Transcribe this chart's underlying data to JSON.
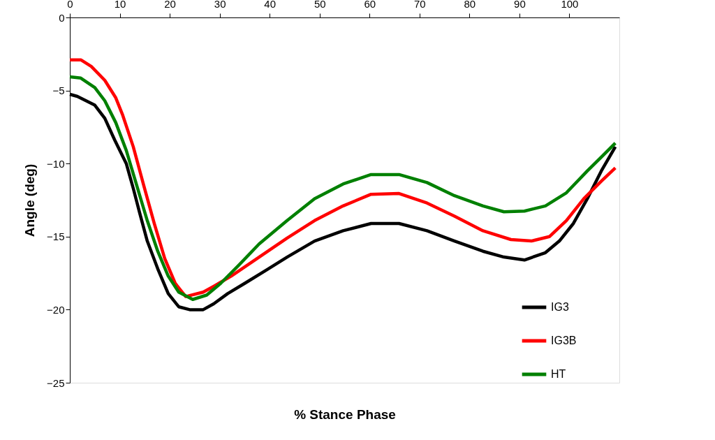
{
  "chart_data": {
    "type": "line",
    "xlabel": "% Stance Phase",
    "ylabel": "Angle (deg)",
    "xlim": [
      0,
      110
    ],
    "xticks": [
      0,
      10,
      20,
      30,
      40,
      50,
      60,
      70,
      80,
      90,
      100
    ],
    "ylim": [
      -25,
      0
    ],
    "yticks": [
      -25,
      -20,
      -15,
      -10,
      -5,
      0
    ],
    "grid": false,
    "legend": "bottom right",
    "marker": "none",
    "line_style": "solid",
    "series": [
      {
        "name": "IG3",
        "color": "#000000",
        "x": [
          0,
          1.5,
          5,
          7,
          9,
          11.3,
          12.7,
          14,
          15.5,
          17.6,
          19.7,
          21.8,
          24,
          26.7,
          28.8,
          31.6,
          35,
          39.3,
          43.5,
          49,
          54.7,
          60.3,
          65.9,
          71.5,
          77,
          82.7,
          86.9,
          91,
          95.2,
          98,
          100.8,
          103.6,
          106.4,
          109.2
        ],
        "values": [
          -5.26,
          -5.4,
          -6.0,
          -6.9,
          -8.4,
          -10.0,
          -11.7,
          -13.4,
          -15.3,
          -17.2,
          -18.9,
          -19.8,
          -20.0,
          -20.0,
          -19.6,
          -18.9,
          -18.2,
          -17.3,
          -16.4,
          -15.3,
          -14.6,
          -14.1,
          -14.1,
          -14.6,
          -15.3,
          -16.0,
          -16.4,
          -16.6,
          -16.1,
          -15.3,
          -14.1,
          -12.4,
          -10.5,
          -8.85
        ]
      },
      {
        "name": "IG3B",
        "color": "#ff0000",
        "x": [
          0,
          2.2,
          4.3,
          7,
          9.2,
          10.6,
          12.7,
          14.8,
          16.9,
          19,
          21.1,
          23.2,
          26.7,
          28.8,
          32.3,
          37.9,
          43.5,
          49,
          54.7,
          60.3,
          65.9,
          71.5,
          77,
          82.7,
          88.3,
          92.4,
          96,
          99.4,
          102.9,
          106.4,
          109.2
        ],
        "values": [
          -2.9,
          -2.9,
          -3.35,
          -4.3,
          -5.5,
          -6.7,
          -8.85,
          -11.5,
          -14.1,
          -16.5,
          -18.2,
          -19.1,
          -18.8,
          -18.4,
          -17.7,
          -16.4,
          -15.1,
          -13.9,
          -12.9,
          -12.1,
          -12.05,
          -12.7,
          -13.6,
          -14.6,
          -15.2,
          -15.3,
          -15.0,
          -13.9,
          -12.4,
          -11.2,
          -10.3
        ]
      },
      {
        "name": "HT",
        "color": "#008000",
        "x": [
          0,
          2.2,
          5,
          7,
          9.2,
          11.3,
          13.4,
          15.5,
          17.6,
          19.7,
          21.8,
          24.6,
          27.4,
          30.2,
          33.7,
          37.9,
          43.5,
          49,
          54.7,
          60.3,
          65.9,
          71.5,
          77,
          82.7,
          86.9,
          91,
          95.2,
          99.4,
          103.6,
          106.4,
          109.2
        ],
        "values": [
          -4.06,
          -4.15,
          -4.8,
          -5.7,
          -7.2,
          -9.1,
          -11.5,
          -13.9,
          -16.0,
          -17.7,
          -18.8,
          -19.3,
          -19.0,
          -18.2,
          -17.0,
          -15.5,
          -13.9,
          -12.4,
          -11.4,
          -10.75,
          -10.75,
          -11.3,
          -12.2,
          -12.9,
          -13.3,
          -13.25,
          -12.9,
          -12.0,
          -10.5,
          -9.55,
          -8.6
        ]
      }
    ]
  }
}
